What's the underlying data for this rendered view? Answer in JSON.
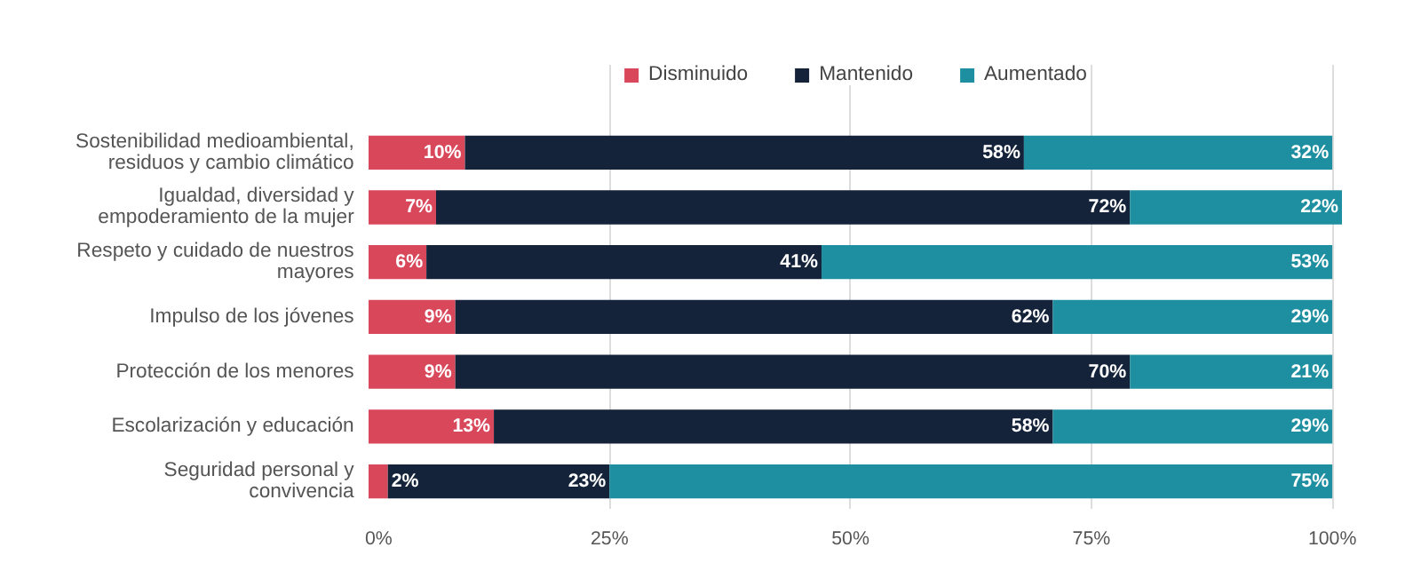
{
  "chart_data": {
    "type": "bar",
    "orientation": "horizontal",
    "stacked": true,
    "categories": [
      "Sostenibilidad medioambiental, residuos y cambio climático",
      "Igualdad, diversidad y empoderamiento de la mujer",
      "Respeto y cuidado de nuestros mayores",
      "Impulso de los jóvenes",
      "Protección de los menores",
      "Escolarización y educación",
      "Seguridad personal y convivencia"
    ],
    "series": [
      {
        "name": "Disminuido",
        "color": "#d9475a",
        "values": [
          10,
          7,
          6,
          9,
          9,
          13,
          2
        ],
        "value_labels": [
          "10%",
          "7%",
          "6%",
          "9%",
          "9%",
          "13%",
          "2%"
        ]
      },
      {
        "name": "Mantenido",
        "color": "#14233a",
        "values": [
          58,
          72,
          41,
          62,
          70,
          58,
          23
        ],
        "value_labels": [
          "58%",
          "72%",
          "41%",
          "62%",
          "70%",
          "58%",
          "23%"
        ]
      },
      {
        "name": "Aumentado",
        "color": "#1e8fa0",
        "values": [
          32,
          22,
          53,
          29,
          21,
          29,
          75
        ],
        "value_labels": [
          "32%",
          "22%",
          "53%",
          "29%",
          "21%",
          "29%",
          "75%"
        ]
      }
    ],
    "xlim": [
      0,
      101
    ],
    "xticks": [
      {
        "value": 0,
        "label": "0%"
      },
      {
        "value": 25,
        "label": "25%"
      },
      {
        "value": 50,
        "label": "50%"
      },
      {
        "value": 75,
        "label": "75%"
      },
      {
        "value": 100,
        "label": "100%"
      }
    ],
    "grid": "x",
    "legend": "top"
  }
}
